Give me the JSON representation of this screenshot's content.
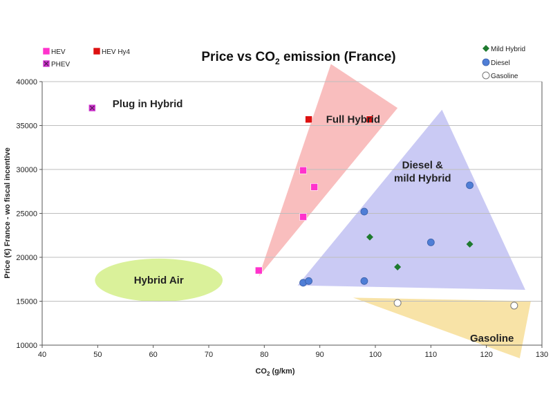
{
  "chart_data": {
    "type": "scatter",
    "title_main": "Price vs CO",
    "title_sub": "2",
    "title_tail": " emission (France)",
    "xlabel_main": "CO",
    "xlabel_sub": "2",
    "xlabel_tail": " (g/km)",
    "ylabel": "Price (€) France - wo fiscal incentive",
    "xlim": [
      40,
      130
    ],
    "ylim": [
      10000,
      40000
    ],
    "xticks": [
      40,
      50,
      60,
      70,
      80,
      90,
      100,
      110,
      120,
      130
    ],
    "yticks": [
      10000,
      15000,
      20000,
      25000,
      30000,
      35000,
      40000
    ],
    "grid": "horizontal",
    "legend": [
      {
        "name": "HEV",
        "color": "#ff33cc",
        "marker": "square"
      },
      {
        "name": "HEV Hy4",
        "color": "#dd1111",
        "marker": "square"
      },
      {
        "name": "PHEV",
        "color": "#cc33cc",
        "marker": "square-x"
      },
      {
        "name": "Mild Hybrid",
        "color": "#1e7a2e",
        "marker": "diamond"
      },
      {
        "name": "Diesel",
        "color": "#4f7ed6",
        "marker": "circle"
      },
      {
        "name": "Gasoline",
        "color": "#ffffff",
        "marker": "circle-open"
      }
    ],
    "series": [
      {
        "name": "HEV",
        "color": "#ff33cc",
        "marker": "square",
        "points": [
          [
            79,
            18500
          ],
          [
            87,
            29900
          ],
          [
            87,
            24600
          ],
          [
            89,
            28000
          ]
        ]
      },
      {
        "name": "HEV Hy4",
        "color": "#dd1111",
        "marker": "square",
        "points": [
          [
            88,
            35700
          ],
          [
            99,
            35700
          ]
        ]
      },
      {
        "name": "PHEV",
        "color": "#cc33cc",
        "marker": "square-x",
        "points": [
          [
            49,
            37000
          ]
        ]
      },
      {
        "name": "Mild Hybrid",
        "color": "#1e7a2e",
        "marker": "diamond",
        "points": [
          [
            99,
            22300
          ],
          [
            104,
            18900
          ],
          [
            117,
            21500
          ]
        ]
      },
      {
        "name": "Diesel",
        "color": "#4f7ed6",
        "marker": "circle",
        "points": [
          [
            87,
            17100
          ],
          [
            88,
            17300
          ],
          [
            98,
            25200
          ],
          [
            98,
            17300
          ],
          [
            110,
            21700
          ],
          [
            117,
            28200
          ]
        ]
      },
      {
        "name": "Gasoline",
        "color": "#ffffff",
        "marker": "circle-open",
        "points": [
          [
            104,
            14800
          ],
          [
            125,
            14500
          ]
        ]
      }
    ],
    "regions": [
      {
        "label": [
          "Plug in Hybrid"
        ],
        "color": "none",
        "shape": "none",
        "label_at": [
          59,
          37500
        ]
      },
      {
        "label": [
          "Full Hybrid"
        ],
        "color": "#f7a8a8",
        "shape": "polygon",
        "points": [
          [
            79,
            17800
          ],
          [
            92,
            42000
          ],
          [
            104,
            37000
          ]
        ],
        "label_at": [
          96,
          35700
        ]
      },
      {
        "label": [
          "Diesel &",
          "mild Hybrid"
        ],
        "color": "#b8b8f0",
        "shape": "polygon",
        "points": [
          [
            86,
            16800
          ],
          [
            112,
            36800
          ],
          [
            127,
            16300
          ]
        ],
        "label_at": [
          108.5,
          30500
        ]
      },
      {
        "label": [
          "Gasoline"
        ],
        "color": "#f5d98a",
        "shape": "polygon",
        "points": [
          [
            96,
            15400
          ],
          [
            128,
            15000
          ],
          [
            126,
            8500
          ]
        ],
        "label_at": [
          121,
          10800
        ]
      },
      {
        "label": [
          "Hybrid Air"
        ],
        "color": "#d6f08f",
        "shape": "ellipse",
        "center": [
          61,
          17400
        ],
        "radius": [
          11.5,
          2450
        ],
        "label_at": [
          61,
          17400
        ]
      }
    ]
  }
}
